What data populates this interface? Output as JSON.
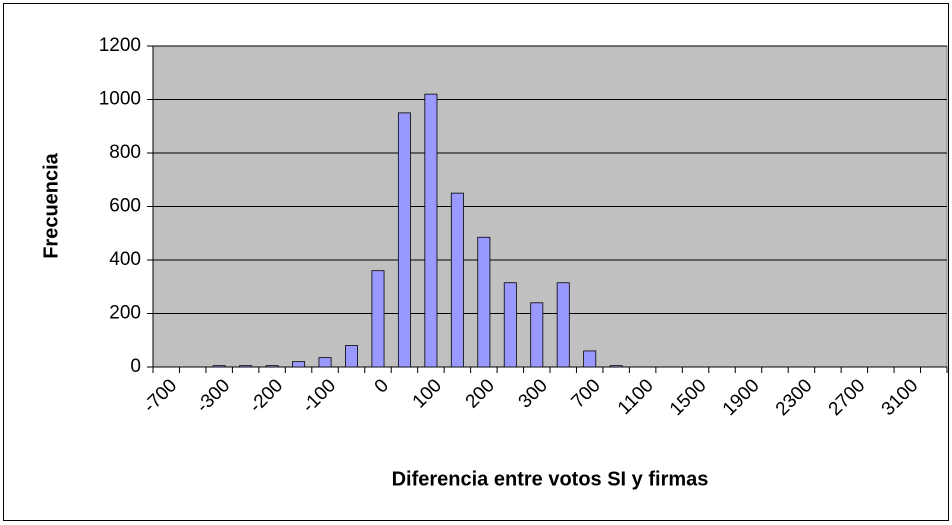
{
  "chart_data": {
    "type": "bar",
    "xlabel": "Diferencia entre votos SI y firmas",
    "ylabel": "Frecuencia",
    "categories": [
      "-700",
      null,
      "-300",
      null,
      "-200",
      null,
      "-100",
      null,
      "0",
      null,
      "100",
      null,
      "200",
      null,
      "300",
      null,
      "700",
      null,
      "1100",
      null,
      "1500",
      null,
      "1900",
      null,
      "2300",
      null,
      "2700",
      null,
      "3100",
      null
    ],
    "values": [
      0,
      0,
      5,
      5,
      5,
      20,
      35,
      80,
      360,
      950,
      1020,
      650,
      485,
      315,
      240,
      315,
      60,
      5,
      0,
      0,
      0,
      0,
      0,
      0,
      0,
      0,
      0,
      0,
      0,
      0
    ],
    "color": "#9999ff",
    "ylim": [
      0,
      1200
    ],
    "yticks": [
      0,
      200,
      400,
      600,
      800,
      1000,
      1200
    ],
    "grid": true,
    "plot_background": "#c0c0c0"
  }
}
